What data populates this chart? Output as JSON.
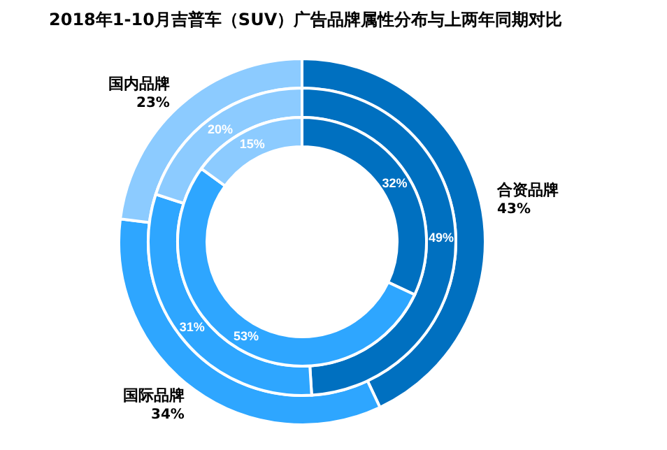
{
  "chart_data": {
    "type": "donut",
    "title": "2018年1-10月吉普车（SUV）广告品牌属性分布与上两年同期对比",
    "categories": [
      "合资品牌",
      "国际品牌",
      "国内品牌"
    ],
    "colors": [
      "#0070c0",
      "#2ea6ff",
      "#8ccbff"
    ],
    "series": [
      {
        "values": [
          43,
          34,
          23
        ],
        "value_labels": [
          "43%",
          "34%",
          "23%"
        ]
      },
      {
        "values": [
          49,
          31,
          20
        ],
        "value_labels": [
          "49%",
          "31%",
          "20%"
        ]
      },
      {
        "values": [
          32,
          53,
          15
        ],
        "value_labels": [
          "32%",
          "53%",
          "15%"
        ]
      }
    ]
  }
}
